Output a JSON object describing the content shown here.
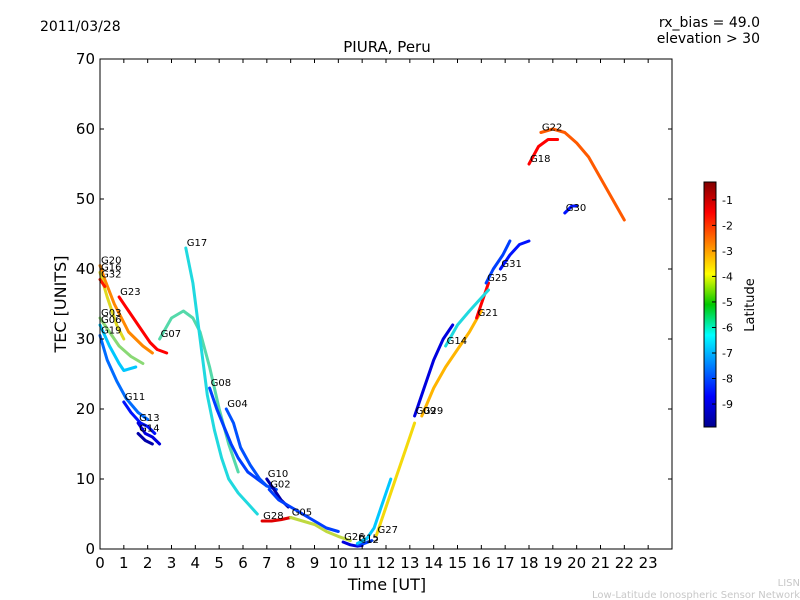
{
  "header": {
    "date": "2011/03/28",
    "rx_bias": "rx_bias = 49.0",
    "elevation": "elevation > 30"
  },
  "watermark": {
    "line1": "LISN",
    "line2": "Low-Latitude Ionospheric Sensor Network"
  },
  "chart_data": {
    "type": "scatter",
    "title": "PIURA, Peru",
    "xlabel": "Time [UT]",
    "ylabel": "TEC [UNITS]",
    "xlim": [
      0,
      24
    ],
    "ylim": [
      0,
      70
    ],
    "xticks": [
      0,
      1,
      2,
      3,
      4,
      5,
      6,
      7,
      8,
      9,
      10,
      11,
      12,
      13,
      14,
      15,
      16,
      17,
      18,
      19,
      20,
      21,
      22,
      23
    ],
    "yticks": [
      0,
      10,
      20,
      30,
      40,
      50,
      60,
      70
    ],
    "grid": false,
    "colorbar": {
      "label": "Latitude",
      "range": [
        -9.9,
        -0.3
      ],
      "ticks": [
        -1,
        -2,
        -3,
        -4,
        -5,
        -6,
        -7,
        -8,
        -9
      ],
      "colormap": "jet"
    },
    "series": [
      {
        "name": "G20",
        "lat": -3.0,
        "x": [
          0.0,
          0.2,
          0.6,
          1.2,
          1.8,
          2.2
        ],
        "y": [
          40.5,
          38.5,
          35.0,
          31.0,
          29.0,
          28.0
        ]
      },
      {
        "name": "G16",
        "lat": -4.2,
        "x": [
          0.0,
          0.3,
          0.7,
          1.0
        ],
        "y": [
          39.5,
          36.0,
          32.0,
          30.0
        ]
      },
      {
        "name": "G32",
        "lat": -1.8,
        "x": [
          0.0,
          0.2
        ],
        "y": [
          38.5,
          37.5
        ]
      },
      {
        "name": "G23",
        "lat": -1.5,
        "x": [
          0.8,
          1.2,
          1.8,
          2.1,
          2.4,
          2.8
        ],
        "y": [
          36.0,
          34.0,
          31.0,
          29.5,
          28.5,
          28.0
        ]
      },
      {
        "name": "G03",
        "lat": -5.0,
        "x": [
          0.0,
          0.4,
          0.8,
          1.3,
          1.8
        ],
        "y": [
          33.0,
          31.0,
          29.0,
          27.5,
          26.5
        ]
      },
      {
        "name": "G06",
        "lat": -6.5,
        "x": [
          0.0,
          0.4,
          0.8,
          1.0,
          1.5
        ],
        "y": [
          32.0,
          29.0,
          26.5,
          25.5,
          26.0
        ]
      },
      {
        "name": "G19",
        "lat": -7.5,
        "x": [
          0.0,
          0.3,
          0.7,
          1.1,
          1.6,
          2.0
        ],
        "y": [
          30.5,
          27.0,
          24.0,
          21.5,
          19.5,
          18.5
        ]
      },
      {
        "name": "G11",
        "lat": -8.5,
        "x": [
          1.0,
          1.3,
          1.7,
          2.0,
          2.3
        ],
        "y": [
          21.0,
          19.5,
          18.0,
          17.5,
          16.5
        ]
      },
      {
        "name": "G13",
        "lat": -9.0,
        "x": [
          1.6,
          1.9,
          2.2,
          2.5
        ],
        "y": [
          18.0,
          16.5,
          16.0,
          15.0
        ]
      },
      {
        "name": "G14",
        "lat": -9.5,
        "x": [
          1.6,
          1.9,
          2.2
        ],
        "y": [
          16.5,
          15.5,
          15.0
        ]
      },
      {
        "name": "G07",
        "lat": -5.5,
        "x": [
          2.5,
          3.0,
          3.5,
          3.9,
          4.2,
          4.6,
          5.0,
          5.4,
          5.8
        ],
        "y": [
          30.0,
          33.0,
          34.0,
          33.0,
          31.0,
          26.0,
          20.0,
          15.0,
          11.0
        ]
      },
      {
        "name": "G17",
        "lat": -6.0,
        "x": [
          3.6,
          3.9,
          4.2,
          4.5,
          4.8,
          5.1,
          5.4,
          5.8,
          6.2,
          6.6
        ],
        "y": [
          43.0,
          38.0,
          30.0,
          22.0,
          17.0,
          13.0,
          10.0,
          8.0,
          6.5,
          5.0
        ]
      },
      {
        "name": "G08",
        "lat": -8.0,
        "x": [
          4.6,
          4.9,
          5.2,
          5.5,
          5.8,
          6.2,
          6.6,
          7.0
        ],
        "y": [
          23.0,
          20.0,
          17.5,
          15.0,
          13.0,
          11.0,
          10.0,
          9.0
        ]
      },
      {
        "name": "G04",
        "lat": -7.8,
        "x": [
          5.3,
          5.6,
          5.9,
          6.3,
          6.7,
          7.0,
          7.4
        ],
        "y": [
          20.0,
          18.0,
          14.5,
          12.0,
          10.0,
          9.0,
          8.5
        ]
      },
      {
        "name": "G10",
        "lat": -9.5,
        "x": [
          7.0,
          7.3,
          7.6,
          7.9
        ],
        "y": [
          10.0,
          8.5,
          7.0,
          6.0
        ]
      },
      {
        "name": "G02",
        "lat": -8.0,
        "x": [
          7.1,
          7.5,
          8.0,
          8.5,
          9.0,
          9.5,
          10.0
        ],
        "y": [
          8.5,
          7.0,
          6.0,
          5.0,
          4.0,
          3.0,
          2.5
        ]
      },
      {
        "name": "G28",
        "lat": -1.2,
        "x": [
          6.8,
          7.2,
          7.6,
          8.0
        ],
        "y": [
          4.0,
          4.0,
          4.2,
          4.5
        ]
      },
      {
        "name": "G05",
        "lat": -4.5,
        "x": [
          8.0,
          8.5,
          9.0,
          9.5,
          10.0,
          10.5
        ],
        "y": [
          4.5,
          4.0,
          3.5,
          2.5,
          1.8,
          1.2
        ]
      },
      {
        "name": "G26",
        "lat": -9.0,
        "x": [
          10.2,
          10.5,
          10.8,
          11.0
        ],
        "y": [
          1.0,
          0.6,
          0.4,
          0.5
        ]
      },
      {
        "name": "G12",
        "lat": -8.0,
        "x": [
          10.8,
          11.1,
          11.4
        ],
        "y": [
          0.6,
          0.8,
          1.2
        ]
      },
      {
        "name": "G15",
        "lat": -6.5,
        "x": [
          10.8,
          11.2,
          11.5,
          11.8,
          12.2
        ],
        "y": [
          0.8,
          1.5,
          3.0,
          6.0,
          10.0
        ]
      },
      {
        "name": "G27",
        "lat": -4.0,
        "x": [
          11.6,
          12.0,
          12.4,
          12.8,
          13.2
        ],
        "y": [
          2.0,
          6.0,
          10.0,
          14.0,
          18.0
        ]
      },
      {
        "name": "G29",
        "lat": -3.5,
        "x": [
          13.5,
          14.0,
          14.5,
          15.0,
          15.5,
          16.0
        ],
        "y": [
          19.0,
          23.0,
          26.0,
          28.5,
          31.0,
          34.0
        ]
      },
      {
        "name": "G09",
        "lat": -9.0,
        "x": [
          13.2,
          13.6,
          14.0,
          14.4,
          14.8
        ],
        "y": [
          19.0,
          23.0,
          27.0,
          30.0,
          32.0
        ]
      },
      {
        "name": "G21",
        "lat": -1.5,
        "x": [
          15.8,
          16.0,
          16.3
        ],
        "y": [
          33.0,
          35.0,
          38.0
        ]
      },
      {
        "name": "G14",
        "lat": -6.0,
        "x": [
          14.5,
          15.0,
          15.5,
          15.9,
          16.3
        ],
        "y": [
          29.0,
          32.0,
          34.0,
          35.5,
          37.0
        ]
      },
      {
        "name": "G25",
        "lat": -8.0,
        "x": [
          16.2,
          16.5,
          16.9,
          17.2
        ],
        "y": [
          38.0,
          40.0,
          42.0,
          44.0
        ]
      },
      {
        "name": "G31",
        "lat": -8.5,
        "x": [
          16.8,
          17.2,
          17.6,
          18.0
        ],
        "y": [
          40.0,
          42.0,
          43.5,
          44.0
        ]
      },
      {
        "name": "G18",
        "lat": -1.5,
        "x": [
          18.0,
          18.4,
          18.8,
          19.2
        ],
        "y": [
          55.0,
          57.5,
          58.5,
          58.5
        ]
      },
      {
        "name": "G22",
        "lat": -2.5,
        "x": [
          18.5,
          19.0,
          19.5,
          20.0,
          20.5,
          21.0,
          21.5,
          22.0
        ],
        "y": [
          59.5,
          60.0,
          59.5,
          58.0,
          56.0,
          53.0,
          50.0,
          47.0
        ]
      },
      {
        "name": "G30",
        "lat": -8.5,
        "x": [
          19.5,
          19.8,
          20.0
        ],
        "y": [
          48.0,
          49.0,
          49.0
        ]
      }
    ]
  }
}
